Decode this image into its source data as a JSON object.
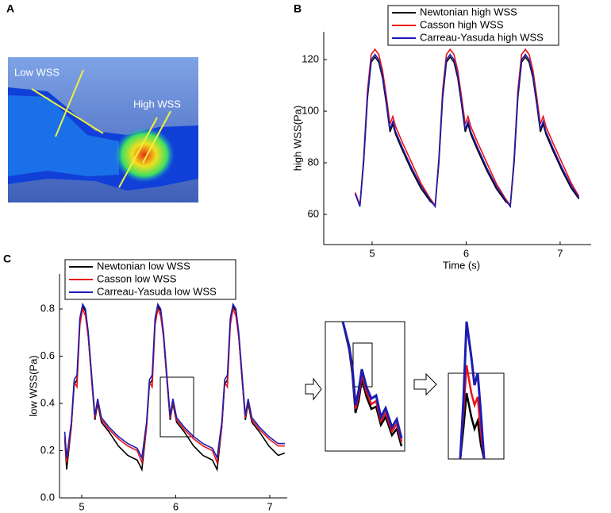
{
  "panel_labels": [
    "A",
    "B",
    "C"
  ],
  "image_labels": [
    "Low WSS",
    "High WSS"
  ],
  "chart_data": [
    {
      "type": "line",
      "xlabel": "Time (s)",
      "ylabel": "high WSS(Pa)",
      "legend": "upper center",
      "xlim": [
        4.485,
        7.33
      ],
      "ylim": [
        48.3,
        130.8
      ],
      "xticks": [
        5,
        6,
        7
      ],
      "yticks": [
        60,
        80,
        100,
        120
      ],
      "x": [
        4.82,
        4.87,
        4.91,
        4.95,
        4.99,
        5.03,
        5.07,
        5.11,
        5.15,
        5.19,
        5.22,
        5.25,
        5.32,
        5.42,
        5.52,
        5.62,
        5.67,
        5.71,
        5.75,
        5.79,
        5.83,
        5.87,
        5.91,
        5.95,
        5.99,
        6.02,
        6.05,
        6.12,
        6.22,
        6.32,
        6.42,
        6.47,
        6.51,
        6.55,
        6.59,
        6.63,
        6.67,
        6.71,
        6.75,
        6.79,
        6.82,
        6.85,
        6.92,
        7.02,
        7.12,
        7.2
      ],
      "series": [
        {
          "name": "Newtonian high WSS",
          "color": "#000000",
          "values": [
            68,
            63.5,
            80,
            105,
            119,
            121,
            119,
            113,
            103,
            92,
            95,
            91,
            85,
            77,
            70,
            65,
            63.5,
            80,
            105,
            119,
            121,
            119,
            113,
            103,
            92,
            95,
            91,
            85,
            77,
            70,
            65,
            63.5,
            80,
            105,
            119,
            121,
            119,
            113,
            103,
            92,
            95,
            91,
            85,
            77,
            70,
            66
          ]
        },
        {
          "name": "Casson high WSS",
          "color": "#e8141c",
          "values": [
            68.5,
            63.5,
            82,
            108,
            122,
            124,
            122,
            116,
            106,
            95,
            98,
            94,
            88,
            80,
            72,
            66,
            63.5,
            82,
            108,
            122,
            124,
            122,
            116,
            106,
            95,
            98,
            94,
            88,
            80,
            72,
            66,
            63.5,
            82,
            108,
            122,
            124,
            122,
            116,
            106,
            95,
            98,
            94,
            88,
            80,
            72,
            67
          ]
        },
        {
          "name": "Carreau-Yasuda high WSS",
          "color": "#1c1cb4",
          "values": [
            68,
            63,
            81,
            106,
            120,
            122,
            120,
            114,
            104,
            93,
            96,
            92,
            86,
            78,
            71,
            65.5,
            63,
            81,
            106,
            120,
            122,
            120,
            114,
            104,
            93,
            96,
            92,
            86,
            78,
            71,
            65.5,
            63,
            81,
            106,
            120,
            122,
            120,
            114,
            104,
            93,
            96,
            92,
            86,
            78,
            71,
            66.5
          ]
        }
      ]
    },
    {
      "type": "line",
      "ylabel": "low WSS(Pa)",
      "legend": "upper left",
      "xlim": [
        4.764,
        7.186
      ],
      "ylim": [
        0,
        0.948
      ],
      "xticks": [
        5,
        6,
        7
      ],
      "yticks": [
        {
          "value": 0,
          "label": "0.0"
        },
        0.2,
        0.4,
        0.6,
        0.8
      ],
      "x": [
        4.82,
        4.84,
        4.89,
        4.92,
        4.95,
        4.98,
        5.01,
        5.04,
        5.07,
        5.11,
        5.14,
        5.17,
        5.21,
        5.29,
        5.39,
        5.49,
        5.59,
        5.64,
        5.69,
        5.72,
        5.75,
        5.78,
        5.81,
        5.84,
        5.87,
        5.91,
        5.94,
        5.97,
        6.01,
        6.09,
        6.19,
        6.29,
        6.39,
        6.44,
        6.49,
        6.52,
        6.55,
        6.58,
        6.61,
        6.64,
        6.67,
        6.71,
        6.74,
        6.77,
        6.81,
        6.89,
        6.99,
        7.09,
        7.16
      ],
      "series": [
        {
          "name": "Newtonian low WSS",
          "color": "#000000",
          "values": [
            0.25,
            0.12,
            0.3,
            0.48,
            0.5,
            0.74,
            0.81,
            0.79,
            0.68,
            0.48,
            0.33,
            0.4,
            0.32,
            0.28,
            0.22,
            0.18,
            0.16,
            0.12,
            0.3,
            0.48,
            0.5,
            0.74,
            0.81,
            0.79,
            0.68,
            0.48,
            0.33,
            0.4,
            0.32,
            0.28,
            0.22,
            0.18,
            0.16,
            0.12,
            0.3,
            0.48,
            0.5,
            0.74,
            0.81,
            0.79,
            0.68,
            0.48,
            0.33,
            0.4,
            0.32,
            0.28,
            0.22,
            0.18,
            0.19
          ]
        },
        {
          "name": "Casson low WSS",
          "color": "#e8141c",
          "values": [
            0.26,
            0.15,
            0.3,
            0.49,
            0.47,
            0.73,
            0.8,
            0.77,
            0.68,
            0.48,
            0.34,
            0.41,
            0.33,
            0.29,
            0.25,
            0.22,
            0.2,
            0.15,
            0.3,
            0.49,
            0.47,
            0.73,
            0.8,
            0.77,
            0.68,
            0.48,
            0.34,
            0.41,
            0.33,
            0.29,
            0.25,
            0.22,
            0.2,
            0.15,
            0.3,
            0.49,
            0.47,
            0.73,
            0.8,
            0.77,
            0.68,
            0.48,
            0.34,
            0.41,
            0.33,
            0.29,
            0.25,
            0.22,
            0.22
          ]
        },
        {
          "name": "Carreau-Yasuda low WSS",
          "color": "#1c1cb4",
          "values": [
            0.28,
            0.17,
            0.32,
            0.5,
            0.52,
            0.76,
            0.82,
            0.8,
            0.7,
            0.5,
            0.35,
            0.42,
            0.34,
            0.3,
            0.26,
            0.23,
            0.21,
            0.17,
            0.32,
            0.5,
            0.52,
            0.76,
            0.82,
            0.8,
            0.7,
            0.5,
            0.35,
            0.42,
            0.34,
            0.3,
            0.26,
            0.23,
            0.21,
            0.17,
            0.32,
            0.5,
            0.52,
            0.76,
            0.82,
            0.8,
            0.7,
            0.5,
            0.35,
            0.42,
            0.34,
            0.3,
            0.26,
            0.23,
            0.23
          ]
        }
      ]
    }
  ]
}
